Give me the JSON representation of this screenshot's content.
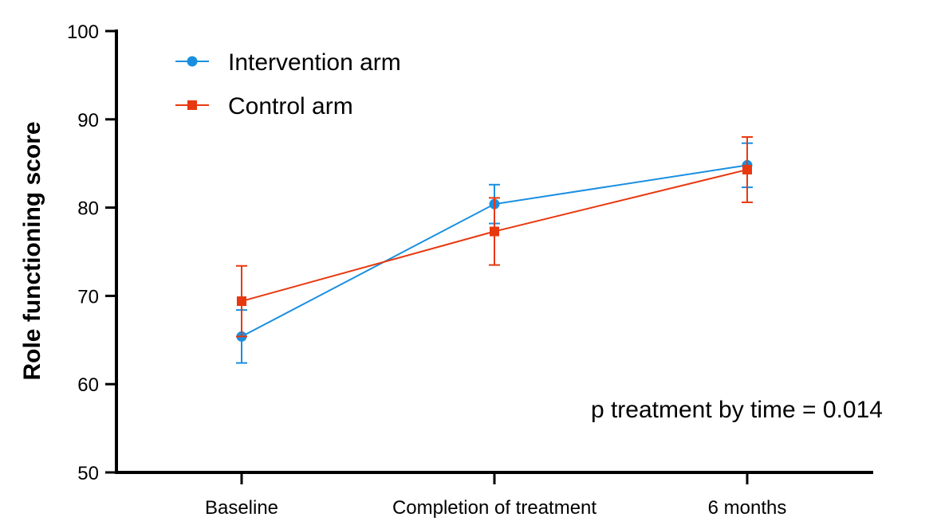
{
  "chart_data": {
    "type": "line",
    "title": "",
    "xlabel": "",
    "ylabel": "Role functioning score",
    "ylim": [
      50,
      100
    ],
    "yticks": [
      50,
      60,
      70,
      80,
      90,
      100
    ],
    "categories": [
      "Baseline",
      "Completion of treatment",
      "6 months"
    ],
    "series": [
      {
        "name": "Intervention arm",
        "color": "#1a8fe0",
        "marker": "circle",
        "values": [
          65.4,
          80.4,
          84.8
        ],
        "lower": [
          62.4,
          78.2,
          82.3
        ],
        "upper": [
          68.4,
          82.6,
          87.3
        ]
      },
      {
        "name": "Control arm",
        "color": "#e8380f",
        "marker": "square",
        "values": [
          69.4,
          77.3,
          84.3
        ],
        "lower": [
          65.4,
          73.5,
          80.6
        ],
        "upper": [
          73.4,
          81.1,
          88.0
        ]
      }
    ],
    "legend_position": "top-left",
    "grid": false,
    "annotation": "p treatment by time = 0.014"
  }
}
